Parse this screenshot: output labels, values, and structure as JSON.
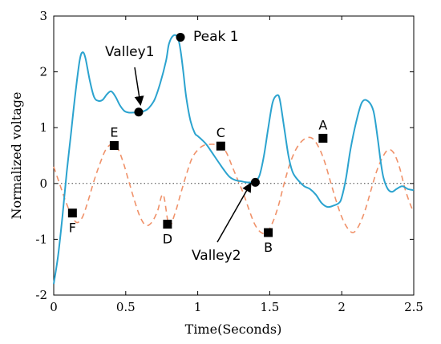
{
  "chart_data": {
    "type": "line",
    "xlabel": "Time(Seconds)",
    "ylabel": "Normalized voltage",
    "xlim": [
      0,
      2.5
    ],
    "ylim": [
      -2,
      3
    ],
    "xticks": [
      0,
      0.5,
      1,
      1.5,
      2,
      2.5
    ],
    "yticks": [
      -2,
      -1,
      0,
      1,
      2,
      3
    ],
    "xtick_labels": [
      "0",
      "0.5",
      "1",
      "1.5",
      "2",
      "2.5"
    ],
    "ytick_labels": [
      "-2",
      "-1",
      "0",
      "1",
      "2",
      "3"
    ],
    "reference_line": {
      "y": 0,
      "style": "dotted"
    },
    "series": [
      {
        "style": "solid",
        "color": "#2BA3CF",
        "x": [
          0,
          0.03,
          0.06,
          0.09,
          0.12,
          0.15,
          0.18,
          0.2,
          0.22,
          0.25,
          0.28,
          0.31,
          0.34,
          0.37,
          0.4,
          0.43,
          0.46,
          0.49,
          0.52,
          0.55,
          0.58,
          0.6,
          0.63,
          0.66,
          0.7,
          0.74,
          0.78,
          0.8,
          0.83,
          0.86,
          0.88,
          0.9,
          0.92,
          0.95,
          0.98,
          1.0,
          1.03,
          1.06,
          1.1,
          1.14,
          1.18,
          1.22,
          1.26,
          1.3,
          1.34,
          1.38,
          1.4,
          1.43,
          1.46,
          1.49,
          1.52,
          1.55,
          1.57,
          1.6,
          1.63,
          1.66,
          1.7,
          1.74,
          1.78,
          1.82,
          1.86,
          1.9,
          1.94,
          1.98,
          2.0,
          2.03,
          2.06,
          2.1,
          2.14,
          2.18,
          2.22,
          2.25,
          2.27,
          2.29,
          2.32,
          2.35,
          2.38,
          2.42,
          2.46,
          2.5
        ],
        "y": [
          -1.8,
          -1.3,
          -0.6,
          0.2,
          0.9,
          1.6,
          2.2,
          2.35,
          2.25,
          1.85,
          1.55,
          1.48,
          1.5,
          1.6,
          1.65,
          1.55,
          1.4,
          1.3,
          1.27,
          1.27,
          1.27,
          1.28,
          1.3,
          1.35,
          1.5,
          1.8,
          2.2,
          2.5,
          2.65,
          2.62,
          2.4,
          2.0,
          1.55,
          1.12,
          0.9,
          0.85,
          0.78,
          0.7,
          0.55,
          0.4,
          0.25,
          0.12,
          0.06,
          0.04,
          0.02,
          0.02,
          0.03,
          0.15,
          0.5,
          1.0,
          1.45,
          1.58,
          1.5,
          1.0,
          0.5,
          0.2,
          0.05,
          -0.05,
          -0.1,
          -0.2,
          -0.35,
          -0.42,
          -0.4,
          -0.35,
          -0.25,
          0.1,
          0.6,
          1.1,
          1.45,
          1.48,
          1.3,
          0.8,
          0.4,
          0.1,
          -0.1,
          -0.15,
          -0.1,
          -0.05,
          -0.1,
          -0.12
        ]
      },
      {
        "style": "dashed",
        "color": "#F0926A",
        "x": [
          0,
          0.04,
          0.08,
          0.12,
          0.16,
          0.2,
          0.24,
          0.28,
          0.32,
          0.36,
          0.4,
          0.44,
          0.48,
          0.52,
          0.56,
          0.6,
          0.64,
          0.68,
          0.72,
          0.76,
          0.8,
          0.84,
          0.88,
          0.92,
          0.96,
          1.0,
          1.04,
          1.08,
          1.12,
          1.16,
          1.2,
          1.24,
          1.28,
          1.32,
          1.36,
          1.4,
          1.44,
          1.48,
          1.52,
          1.56,
          1.6,
          1.64,
          1.68,
          1.72,
          1.76,
          1.8,
          1.84,
          1.88,
          1.92,
          1.96,
          2.0,
          2.04,
          2.08,
          2.12,
          2.16,
          2.2,
          2.24,
          2.28,
          2.32,
          2.36,
          2.4,
          2.44,
          2.48,
          2.5
        ],
        "y": [
          0.3,
          0.0,
          -0.3,
          -0.55,
          -0.7,
          -0.6,
          -0.3,
          0.05,
          0.35,
          0.6,
          0.7,
          0.65,
          0.4,
          0.05,
          -0.3,
          -0.6,
          -0.75,
          -0.7,
          -0.5,
          -0.2,
          -0.75,
          -0.55,
          -0.2,
          0.15,
          0.45,
          0.6,
          0.68,
          0.7,
          0.7,
          0.68,
          0.55,
          0.3,
          0.05,
          -0.2,
          -0.5,
          -0.75,
          -0.88,
          -0.88,
          -0.7,
          -0.4,
          0.0,
          0.35,
          0.6,
          0.75,
          0.82,
          0.8,
          0.65,
          0.4,
          0.05,
          -0.3,
          -0.6,
          -0.8,
          -0.88,
          -0.75,
          -0.5,
          -0.15,
          0.2,
          0.45,
          0.6,
          0.55,
          0.3,
          -0.1,
          -0.4,
          -0.5
        ]
      }
    ],
    "circle_markers": [
      {
        "x": 0.59,
        "y": 1.28
      },
      {
        "x": 0.88,
        "y": 2.62
      },
      {
        "x": 1.4,
        "y": 0.02
      }
    ],
    "square_markers": [
      {
        "label": "F",
        "x": 0.13,
        "y": -0.53
      },
      {
        "label": "E",
        "x": 0.42,
        "y": 0.68
      },
      {
        "label": "D",
        "x": 0.79,
        "y": -0.73
      },
      {
        "label": "C",
        "x": 1.16,
        "y": 0.67
      },
      {
        "label": "B",
        "x": 1.49,
        "y": -0.88
      },
      {
        "label": "A",
        "x": 1.87,
        "y": 0.81
      }
    ],
    "callouts": [
      {
        "text": "Peak 1",
        "x": 0.88,
        "y": 2.62
      },
      {
        "text": "Valley1",
        "x": 0.59,
        "y": 1.28
      },
      {
        "text": "Valley2",
        "x": 1.4,
        "y": 0.02
      }
    ]
  }
}
